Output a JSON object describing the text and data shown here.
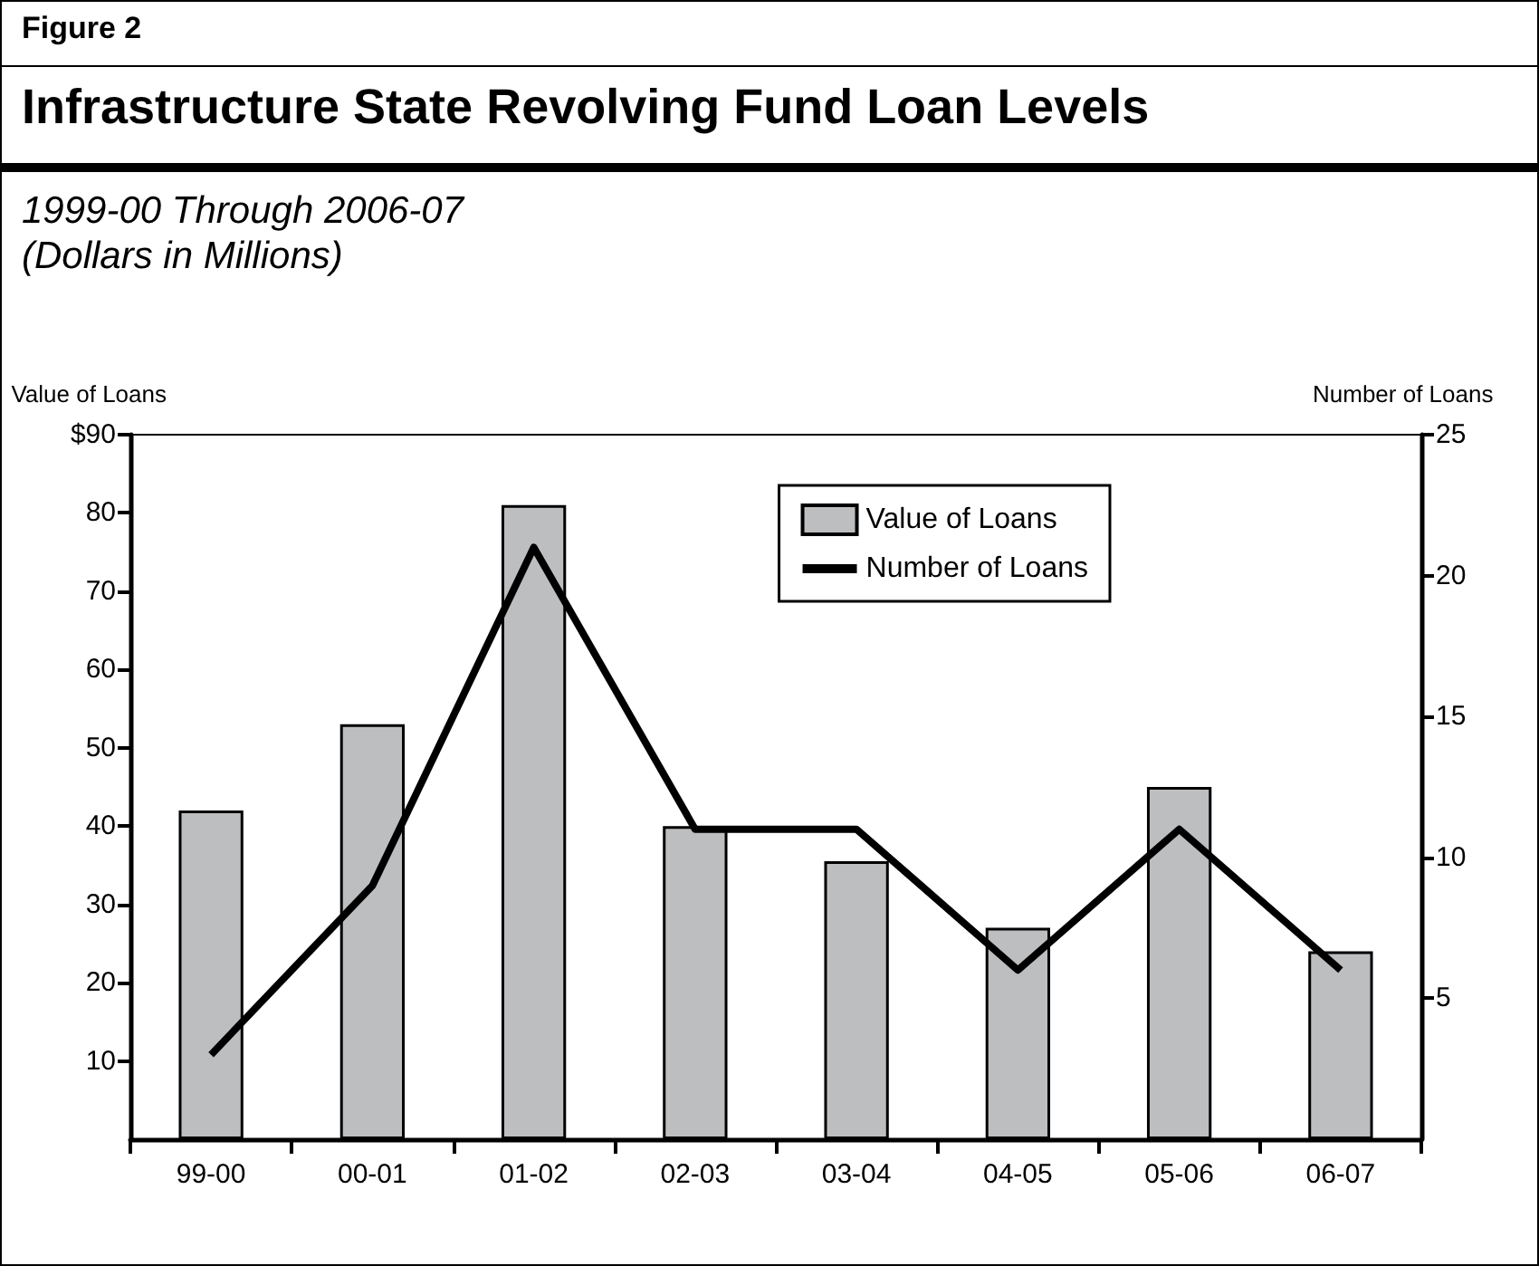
{
  "chart_data": {
    "type": "bar",
    "title": "Infrastructure State Revolving Fund Loan Levels",
    "subtitle": "1999-00 Through 2006-07\n(Dollars in Millions)",
    "annotations": [
      "Figure 2"
    ],
    "ylabel": "Value of Loans",
    "y2label": "Number of Loans",
    "categories": [
      "99-00",
      "00-01",
      "01-02",
      "02-03",
      "03-04",
      "04-05",
      "05-06",
      "06-07"
    ],
    "series": [
      {
        "name": "Value of Loans",
        "color": "#bdbec0",
        "values": [
          42,
          53,
          81,
          40,
          35.5,
          27,
          45,
          24
        ]
      },
      {
        "name": "Number of Loans",
        "type": "line",
        "axis": "y2",
        "color": "#000000",
        "values": [
          3,
          9,
          21,
          11,
          11,
          6,
          11,
          6
        ]
      }
    ],
    "ylim": [
      0,
      90
    ],
    "yticks": [
      10,
      20,
      30,
      40,
      50,
      60,
      70,
      80,
      {
        "value": 90,
        "label": "$90"
      }
    ],
    "y2lim": [
      0,
      25
    ],
    "y2ticks": [
      5,
      10,
      15,
      20,
      25
    ],
    "legend": "top right",
    "grid": false,
    "marker": "none",
    "line_style": "solid"
  }
}
